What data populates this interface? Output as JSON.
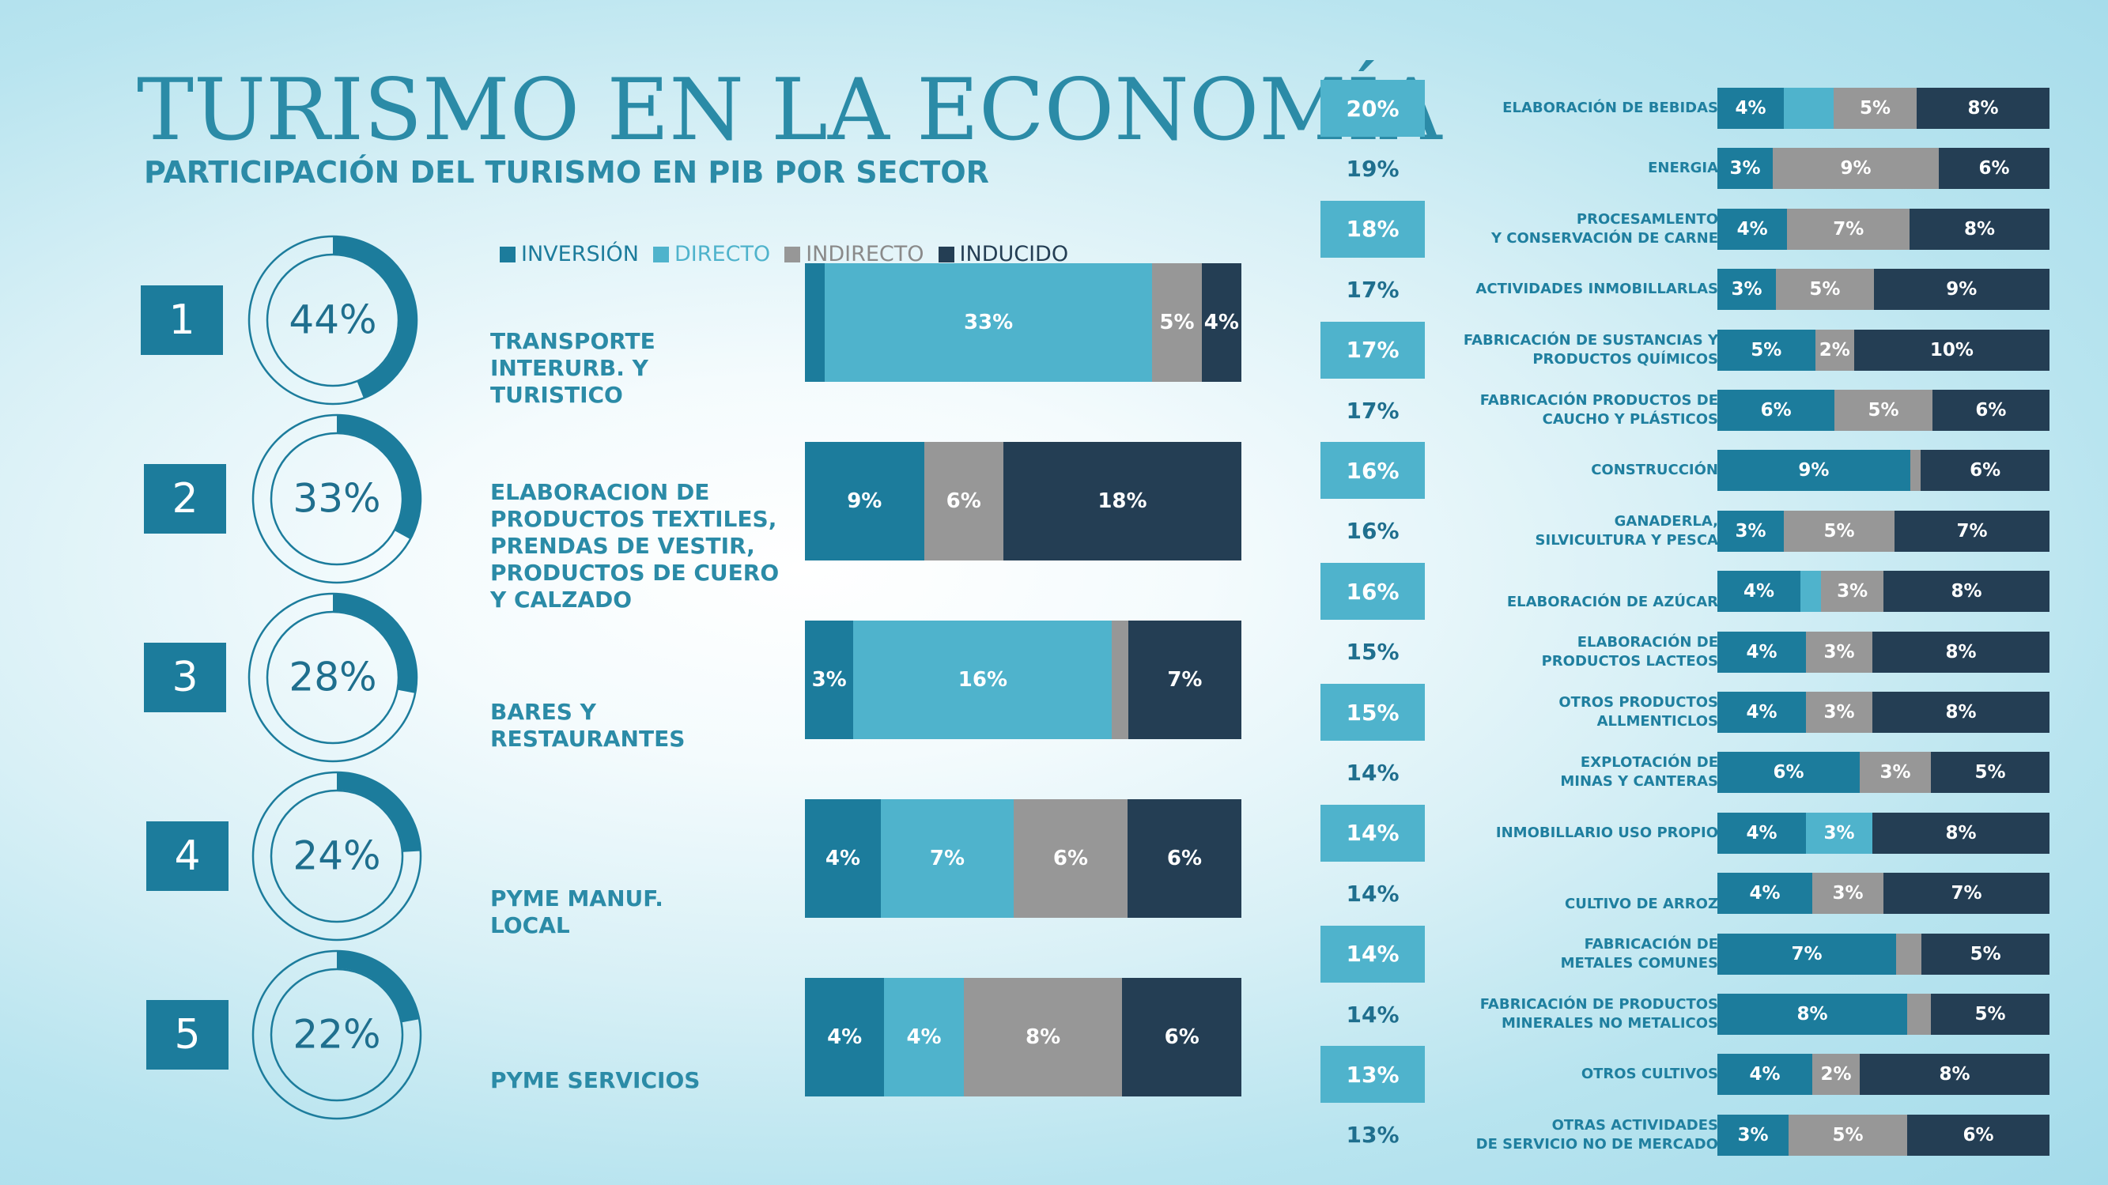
{
  "title": "TURISMO EN LA ECONOMÍA",
  "subtitle": "PARTICIPACIÓN DEL TURISMO EN PIB POR SECTOR",
  "colors": {
    "inversion": "#1c7c9c",
    "directo": "#4fb3cc",
    "indirecto": "#979797",
    "inducido": "#243e54",
    "accent": "#2b8ba7"
  },
  "legend": [
    {
      "label": "INVERSIÓN",
      "color": "#1c7c9c"
    },
    {
      "label": "DIRECTO",
      "color": "#4fb3cc"
    },
    {
      "label": "INDIRECTO",
      "color": "#979797"
    },
    {
      "label": "INDUCIDO",
      "color": "#243e54"
    }
  ],
  "chart_data": [
    {
      "type": "bar",
      "orientation": "horizontal",
      "stacked": true,
      "title": "",
      "series_names": [
        "INVERSIÓN",
        "DIRECTO",
        "INDIRECTO",
        "INDUCIDO"
      ],
      "top_sectors": [
        {
          "rank": "1",
          "total": 44,
          "total_label": "44%",
          "name": "TRANSPORTE\nINTERURB. Y\nTURISTICO",
          "segments": [
            {
              "value": 2,
              "label": ""
            },
            {
              "value": 33,
              "label": "33%"
            },
            {
              "value": 5,
              "label": "5%"
            },
            {
              "value": 4,
              "label": "4%"
            }
          ]
        },
        {
          "rank": "2",
          "total": 33,
          "total_label": "33%",
          "name": "ELABORACION DE\nPRODUCTOS TEXTILES,\nPRENDAS DE VESTIR,\nPRODUCTOS DE CUERO\nY CALZADO",
          "segments": [
            {
              "value": 9,
              "label": "9%"
            },
            {
              "value": 0,
              "label": ""
            },
            {
              "value": 6,
              "label": "6%"
            },
            {
              "value": 18,
              "label": "18%"
            }
          ]
        },
        {
          "rank": "3",
          "total": 28,
          "total_label": "28%",
          "name": "BARES Y\nRESTAURANTES",
          "segments": [
            {
              "value": 3,
              "label": "3%"
            },
            {
              "value": 16,
              "label": "16%"
            },
            {
              "value": 1,
              "label": ""
            },
            {
              "value": 7,
              "label": "7%"
            }
          ]
        },
        {
          "rank": "4",
          "total": 24,
          "total_label": "24%",
          "name": "PYME MANUF.\nLOCAL",
          "segments": [
            {
              "value": 4,
              "label": "4%"
            },
            {
              "value": 7,
              "label": "7%"
            },
            {
              "value": 6,
              "label": "6%"
            },
            {
              "value": 6,
              "label": "6%"
            }
          ]
        },
        {
          "rank": "5",
          "total": 22,
          "total_label": "22%",
          "name": "PYME SERVICIOS",
          "segments": [
            {
              "value": 4,
              "label": "4%"
            },
            {
              "value": 4,
              "label": "4%"
            },
            {
              "value": 8,
              "label": "8%"
            },
            {
              "value": 6,
              "label": "6%"
            }
          ]
        }
      ]
    },
    {
      "type": "bar",
      "orientation": "horizontal",
      "stacked": true,
      "title": "",
      "series_names": [
        "INVERSIÓN",
        "DIRECTO",
        "INDIRECTO",
        "INDUCIDO"
      ],
      "sectors": [
        {
          "total_label": "20%",
          "name": "ELABORACIÓN DE BEBIDAS",
          "segments": [
            {
              "value": 4,
              "label": "4%"
            },
            {
              "value": 3,
              "label": ""
            },
            {
              "value": 5,
              "label": "5%"
            },
            {
              "value": 8,
              "label": "8%"
            }
          ]
        },
        {
          "total_label": "19%",
          "name": "ENERGIA",
          "segments": [
            {
              "value": 3,
              "label": "3%"
            },
            {
              "value": 0,
              "label": ""
            },
            {
              "value": 9,
              "label": "9%"
            },
            {
              "value": 6,
              "label": "6%"
            }
          ]
        },
        {
          "total_label": "18%",
          "name": "PROCESAMLENTO\nY CONSERVACIÓN DE CARNE",
          "segments": [
            {
              "value": 4,
              "label": "4%"
            },
            {
              "value": 0,
              "label": ""
            },
            {
              "value": 7,
              "label": "7%"
            },
            {
              "value": 8,
              "label": "8%"
            }
          ]
        },
        {
          "total_label": "17%",
          "name": "ACTIVIDADES INMOBILLARLAS",
          "segments": [
            {
              "value": 3,
              "label": "3%"
            },
            {
              "value": 0,
              "label": ""
            },
            {
              "value": 5,
              "label": "5%"
            },
            {
              "value": 9,
              "label": "9%"
            }
          ]
        },
        {
          "total_label": "17%",
          "name": "FABRICACIÓN DE SUSTANCIAS Y\nPRODUCTOS QUÍMICOS",
          "segments": [
            {
              "value": 5,
              "label": "5%"
            },
            {
              "value": 0,
              "label": ""
            },
            {
              "value": 2,
              "label": "2%"
            },
            {
              "value": 10,
              "label": "10%"
            }
          ]
        },
        {
          "total_label": "17%",
          "name": "FABRICACIÓN PRODUCTOS DE\nCAUCHO Y PLÁSTICOS",
          "segments": [
            {
              "value": 6,
              "label": "6%"
            },
            {
              "value": 0,
              "label": ""
            },
            {
              "value": 5,
              "label": "5%"
            },
            {
              "value": 6,
              "label": "6%"
            }
          ]
        },
        {
          "total_label": "16%",
          "name": "CONSTRUCCIÓN",
          "segments": [
            {
              "value": 9,
              "label": "9%"
            },
            {
              "value": 0,
              "label": ""
            },
            {
              "value": 0.5,
              "label": ""
            },
            {
              "value": 6,
              "label": "6%"
            }
          ]
        },
        {
          "total_label": "16%",
          "name": "GANADERLA,\nSILVICULTURA Y PESCA",
          "segments": [
            {
              "value": 3,
              "label": "3%"
            },
            {
              "value": 0,
              "label": ""
            },
            {
              "value": 5,
              "label": "5%"
            },
            {
              "value": 7,
              "label": "7%"
            }
          ]
        },
        {
          "total_label": "16%",
          "name": "ELABORACIÓN DE AZÚCAR",
          "segments": [
            {
              "value": 4,
              "label": "4%"
            },
            {
              "value": 1,
              "label": ""
            },
            {
              "value": 3,
              "label": "3%"
            },
            {
              "value": 8,
              "label": "8%"
            }
          ]
        },
        {
          "total_label": "15%",
          "name": "ELABORACIÓN DE\nPRODUCTOS LACTEOS",
          "segments": [
            {
              "value": 4,
              "label": "4%"
            },
            {
              "value": 0,
              "label": ""
            },
            {
              "value": 3,
              "label": "3%"
            },
            {
              "value": 8,
              "label": "8%"
            }
          ]
        },
        {
          "total_label": "15%",
          "name": "OTROS PRODUCTOS\nALLMENTICLOS",
          "segments": [
            {
              "value": 4,
              "label": "4%"
            },
            {
              "value": 0,
              "label": ""
            },
            {
              "value": 3,
              "label": "3%"
            },
            {
              "value": 8,
              "label": "8%"
            }
          ]
        },
        {
          "total_label": "14%",
          "name": "EXPLOTACIÓN DE\nMINAS Y CANTERAS",
          "segments": [
            {
              "value": 6,
              "label": "6%"
            },
            {
              "value": 0,
              "label": ""
            },
            {
              "value": 3,
              "label": "3%"
            },
            {
              "value": 5,
              "label": "5%"
            }
          ]
        },
        {
          "total_label": "14%",
          "name": "INMOBILLARIO USO PROPIO",
          "segments": [
            {
              "value": 4,
              "label": "4%"
            },
            {
              "value": 3,
              "label": "3%"
            },
            {
              "value": 0,
              "label": ""
            },
            {
              "value": 8,
              "label": "8%"
            }
          ]
        },
        {
          "total_label": "14%",
          "name": "CULTIVO DE ARROZ",
          "segments": [
            {
              "value": 4,
              "label": "4%"
            },
            {
              "value": 0,
              "label": ""
            },
            {
              "value": 3,
              "label": "3%"
            },
            {
              "value": 7,
              "label": "7%"
            }
          ]
        },
        {
          "total_label": "14%",
          "name": "FABRICACIÓN DE\nMETALES COMUNES",
          "segments": [
            {
              "value": 7,
              "label": "7%"
            },
            {
              "value": 0,
              "label": ""
            },
            {
              "value": 1,
              "label": ""
            },
            {
              "value": 5,
              "label": "5%"
            }
          ]
        },
        {
          "total_label": "14%",
          "name": "FABRICACIÓN DE PRODUCTOS\nMINERALES NO METALICOS",
          "segments": [
            {
              "value": 8,
              "label": "8%"
            },
            {
              "value": 0,
              "label": ""
            },
            {
              "value": 1,
              "label": ""
            },
            {
              "value": 5,
              "label": "5%"
            }
          ]
        },
        {
          "total_label": "13%",
          "name": "OTROS CULTIVOS",
          "segments": [
            {
              "value": 4,
              "label": "4%"
            },
            {
              "value": 0,
              "label": ""
            },
            {
              "value": 2,
              "label": "2%"
            },
            {
              "value": 8,
              "label": "8%"
            }
          ]
        },
        {
          "total_label": "13%",
          "name": "OTRAS ACTIVIDADES\nDE SERVICIO NO DE MERCADO",
          "segments": [
            {
              "value": 3,
              "label": "3%"
            },
            {
              "value": 0,
              "label": ""
            },
            {
              "value": 5,
              "label": "5%"
            },
            {
              "value": 6,
              "label": "6%"
            }
          ]
        }
      ]
    }
  ]
}
